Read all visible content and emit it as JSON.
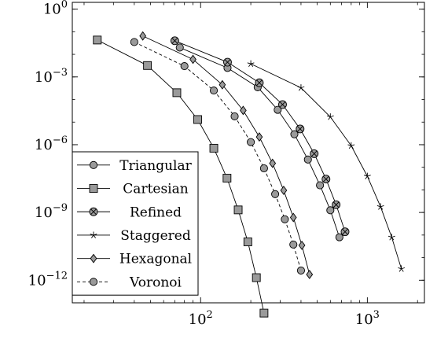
{
  "chart_data": {
    "type": "line",
    "title": "",
    "xlabel": "",
    "ylabel": "",
    "x_scale": "log",
    "y_scale": "log",
    "xlim": [
      17,
      2200
    ],
    "ylim": [
      1e-13,
      2
    ],
    "x_ticks": [
      {
        "value": 100,
        "base": "10",
        "exp": "2"
      },
      {
        "value": 1000,
        "base": "10",
        "exp": "3"
      }
    ],
    "y_ticks": [
      {
        "value": 1,
        "base": "10",
        "exp": "0"
      },
      {
        "value": 0.001,
        "base": "10",
        "exp": "−3"
      },
      {
        "value": 1e-06,
        "base": "10",
        "exp": "−6"
      },
      {
        "value": 1e-09,
        "base": "10",
        "exp": "−9"
      },
      {
        "value": 1e-12,
        "base": "10",
        "exp": "−12"
      }
    ],
    "grid": false,
    "legend_position": "bottom-left",
    "series": [
      {
        "name": "Triangular",
        "marker": "circle",
        "dashed": false,
        "x": [
          75,
          145,
          220,
          290,
          365,
          440,
          520,
          600,
          680
        ],
        "y": [
          0.02,
          0.0025,
          0.00035,
          3.5e-05,
          2.9e-06,
          2.2e-07,
          1.6e-08,
          1.25e-09,
          8e-11
        ]
      },
      {
        "name": "Cartesian",
        "marker": "square",
        "dashed": false,
        "x": [
          24,
          48,
          72,
          96,
          120,
          144,
          168,
          192,
          216,
          240
        ],
        "y": [
          0.043,
          0.0032,
          0.0002,
          1.3e-05,
          7e-07,
          3.3e-08,
          1.3e-09,
          5e-11,
          1.3e-12,
          3.5e-14
        ]
      },
      {
        "name": "Refined",
        "marker": "circle-cross",
        "dashed": false,
        "x": [
          70,
          145,
          225,
          310,
          395,
          480,
          565,
          650,
          735
        ],
        "y": [
          0.04,
          0.0045,
          0.00055,
          6e-05,
          5e-06,
          4e-07,
          3e-08,
          2.2e-09,
          1.4e-10
        ]
      },
      {
        "name": "Staggered",
        "marker": "star",
        "dashed": false,
        "x": [
          200,
          400,
          600,
          800,
          1000,
          1200,
          1400,
          1600
        ],
        "y": [
          0.0038,
          0.00033,
          1.7e-05,
          9e-07,
          4e-08,
          1.8e-09,
          8e-11,
          3.2e-12
        ]
      },
      {
        "name": "Hexagonal",
        "marker": "diamond",
        "dashed": false,
        "x": [
          45,
          90,
          135,
          180,
          225,
          270,
          315,
          360,
          405,
          450
        ],
        "y": [
          0.065,
          0.006,
          0.00045,
          3.3e-05,
          2.2e-06,
          1.5e-07,
          9.5e-09,
          6e-10,
          3.5e-11,
          1.8e-12
        ]
      },
      {
        "name": "Voronoi",
        "marker": "circle",
        "dashed": true,
        "x": [
          40,
          80,
          120,
          160,
          200,
          240,
          280,
          320,
          360,
          400
        ],
        "y": [
          0.035,
          0.003,
          0.00025,
          1.8e-05,
          1.3e-06,
          9e-08,
          6.5e-09,
          5e-10,
          3.8e-11,
          2.7e-12
        ]
      }
    ]
  }
}
